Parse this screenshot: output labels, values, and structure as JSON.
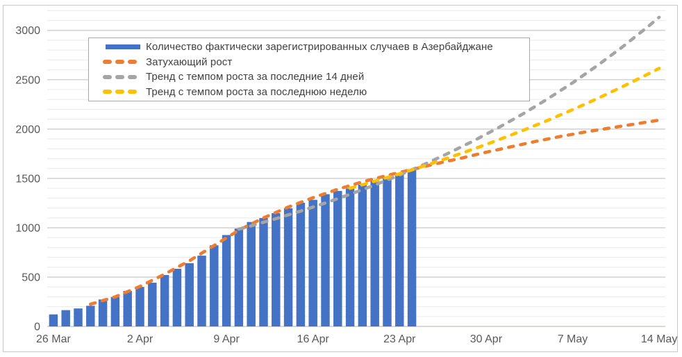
{
  "chart_data": {
    "type": "bar",
    "title": "",
    "background_color": "#FFFFFF",
    "border_color": "#C9C9C9",
    "x_axis": {
      "tick_labels": [
        "26 Mar",
        "2 Apr",
        "9 Apr",
        "16 Apr",
        "23 Apr",
        "30 Apr",
        "7 May",
        "14 May"
      ],
      "tick_days": [
        0,
        7,
        14,
        21,
        28,
        35,
        42,
        49
      ],
      "days_total": 50,
      "label_color": "#595959"
    },
    "y_axis": {
      "min": 0,
      "max": 3000,
      "major_step": 500,
      "minor_step": 100,
      "tick_labels": [
        "0",
        "500",
        "1000",
        "1500",
        "2000",
        "2500",
        "3000"
      ],
      "label_color": "#595959"
    },
    "grid": {
      "major_color": "#D4D4D4",
      "minor_color": "#EDEDED",
      "axis_line_color": "#D0CCC6",
      "minor_extends_to": 3200
    },
    "bars": {
      "label": "Количество фактически зарегистрированных случаев в Азербайджане",
      "color": "#4472C4",
      "start_day": 0,
      "values": [
        122,
        165,
        182,
        209,
        273,
        298,
        359,
        400,
        443,
        521,
        584,
        641,
        717,
        822,
        926,
        991,
        1058,
        1098,
        1148,
        1197,
        1253,
        1283,
        1340,
        1373,
        1398,
        1436,
        1480,
        1518,
        1548,
        1592
      ]
    },
    "series": [
      {
        "id": "damped-growth",
        "label": "Затухающий рост",
        "color": "#ED7D31",
        "style": "dashed",
        "points": [
          [
            3,
            225
          ],
          [
            5,
            300
          ],
          [
            7,
            405
          ],
          [
            9,
            530
          ],
          [
            11,
            665
          ],
          [
            13,
            820
          ],
          [
            15,
            975
          ],
          [
            17,
            1100
          ],
          [
            19,
            1210
          ],
          [
            21,
            1305
          ],
          [
            23,
            1390
          ],
          [
            25,
            1465
          ],
          [
            27,
            1530
          ],
          [
            29,
            1590
          ],
          [
            31,
            1650
          ],
          [
            33,
            1705
          ],
          [
            35,
            1765
          ],
          [
            37,
            1820
          ],
          [
            39,
            1875
          ],
          [
            41,
            1925
          ],
          [
            43,
            1970
          ],
          [
            45,
            2010
          ],
          [
            47,
            2050
          ],
          [
            49,
            2090
          ]
        ]
      },
      {
        "id": "trend-14-days",
        "label": "Тренд с темпом роста за последние 14 дней",
        "color": "#A5A5A5",
        "style": "dashed",
        "points": [
          [
            15,
            986
          ],
          [
            16,
            1020
          ],
          [
            18,
            1092
          ],
          [
            20,
            1169
          ],
          [
            22,
            1251
          ],
          [
            24,
            1339
          ],
          [
            26,
            1433
          ],
          [
            28,
            1534
          ],
          [
            30,
            1642
          ],
          [
            32,
            1758
          ],
          [
            34,
            1881
          ],
          [
            36,
            2014
          ],
          [
            38,
            2155
          ],
          [
            40,
            2307
          ],
          [
            42,
            2469
          ],
          [
            44,
            2643
          ],
          [
            46,
            2829
          ],
          [
            48,
            3028
          ],
          [
            49,
            3132
          ]
        ]
      },
      {
        "id": "trend-last-week",
        "label": "Тренд с темпом роста за последнюю неделю",
        "color": "#FFC000",
        "style": "dashed",
        "points": [
          [
            24,
            1400
          ],
          [
            26,
            1472
          ],
          [
            28,
            1547
          ],
          [
            30,
            1627
          ],
          [
            32,
            1710
          ],
          [
            34,
            1798
          ],
          [
            36,
            1890
          ],
          [
            38,
            1987
          ],
          [
            40,
            2089
          ],
          [
            42,
            2196
          ],
          [
            44,
            2308
          ],
          [
            46,
            2427
          ],
          [
            48,
            2551
          ],
          [
            49,
            2615
          ]
        ]
      }
    ],
    "legend": {
      "position": "top-left",
      "border_color": "#A6A6A6",
      "items": [
        {
          "label": "Количество фактически зарегистрированных случаев в Азербайджане",
          "color": "#4472C4",
          "swatch": "bar"
        },
        {
          "label": "Затухающий рост",
          "color": "#ED7D31",
          "swatch": "dashed-line"
        },
        {
          "label": "Тренд с темпом роста за последние 14 дней",
          "color": "#A5A5A5",
          "swatch": "dashed-line"
        },
        {
          "label": "Тренд с темпом роста за последнюю неделю",
          "color": "#FFC000",
          "swatch": "dashed-line"
        }
      ]
    }
  }
}
